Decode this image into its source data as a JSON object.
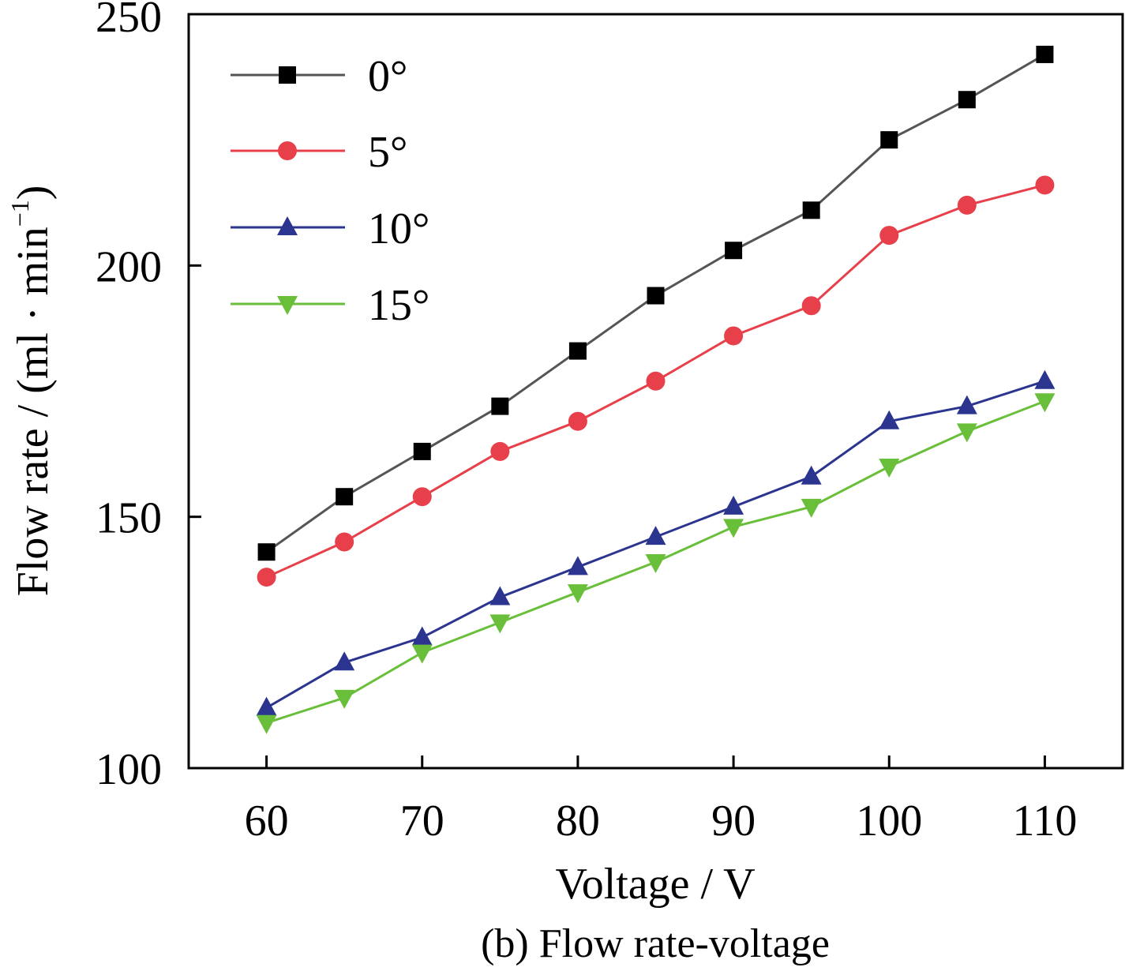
{
  "chart_data": {
    "type": "line",
    "caption": "(b) Flow rate-voltage",
    "xlabel": "Voltage / V",
    "ylabel": "Flow rate / (ml · min",
    "ylabel_sup": "−1",
    "ylabel_close": ")",
    "xlim": [
      55,
      115
    ],
    "ylim": [
      100,
      250
    ],
    "xticks": [
      60,
      70,
      80,
      90,
      100,
      110
    ],
    "yticks": [
      100,
      150,
      200,
      250
    ],
    "x": [
      60,
      65,
      70,
      75,
      80,
      85,
      90,
      95,
      100,
      105,
      110
    ],
    "legend_position": "top-left",
    "grid": false,
    "series": [
      {
        "name": "0°",
        "marker": "square",
        "color": "#000000",
        "line_color": "#555555",
        "values": [
          143,
          154,
          163,
          172,
          183,
          194,
          203,
          211,
          225,
          233,
          242
        ]
      },
      {
        "name": "5°",
        "marker": "circle",
        "color": "#e8404a",
        "line_color": "#e8404a",
        "values": [
          138,
          145,
          154,
          163,
          169,
          177,
          186,
          192,
          206,
          212,
          216
        ]
      },
      {
        "name": "10°",
        "marker": "triangle-up",
        "color": "#2b3590",
        "line_color": "#2b3590",
        "values": [
          112,
          121,
          126,
          134,
          140,
          146,
          152,
          158,
          169,
          172,
          177
        ]
      },
      {
        "name": "15°",
        "marker": "triangle-down",
        "color": "#6abf3a",
        "line_color": "#6abf3a",
        "values": [
          109,
          114,
          123,
          129,
          135,
          141,
          148,
          152,
          160,
          167,
          173
        ]
      }
    ]
  }
}
